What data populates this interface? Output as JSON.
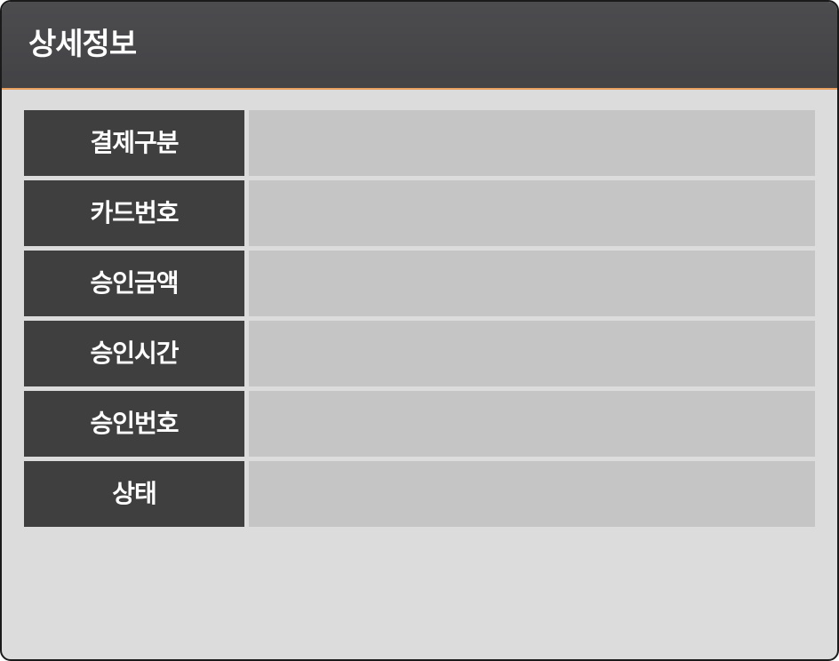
{
  "header": {
    "title": "상세정보"
  },
  "details": {
    "rows": [
      {
        "label": "결제구분",
        "value": ""
      },
      {
        "label": "카드번호",
        "value": ""
      },
      {
        "label": "승인금액",
        "value": ""
      },
      {
        "label": "승인시간",
        "value": ""
      },
      {
        "label": "승인번호",
        "value": ""
      },
      {
        "label": "상태",
        "value": ""
      }
    ]
  },
  "colors": {
    "header_bg": "#4a4a4d",
    "header_accent": "#e8a061",
    "label_bg": "#3f3f3f",
    "value_bg": "#c5c5c5",
    "panel_bg": "#dcdcdc"
  }
}
